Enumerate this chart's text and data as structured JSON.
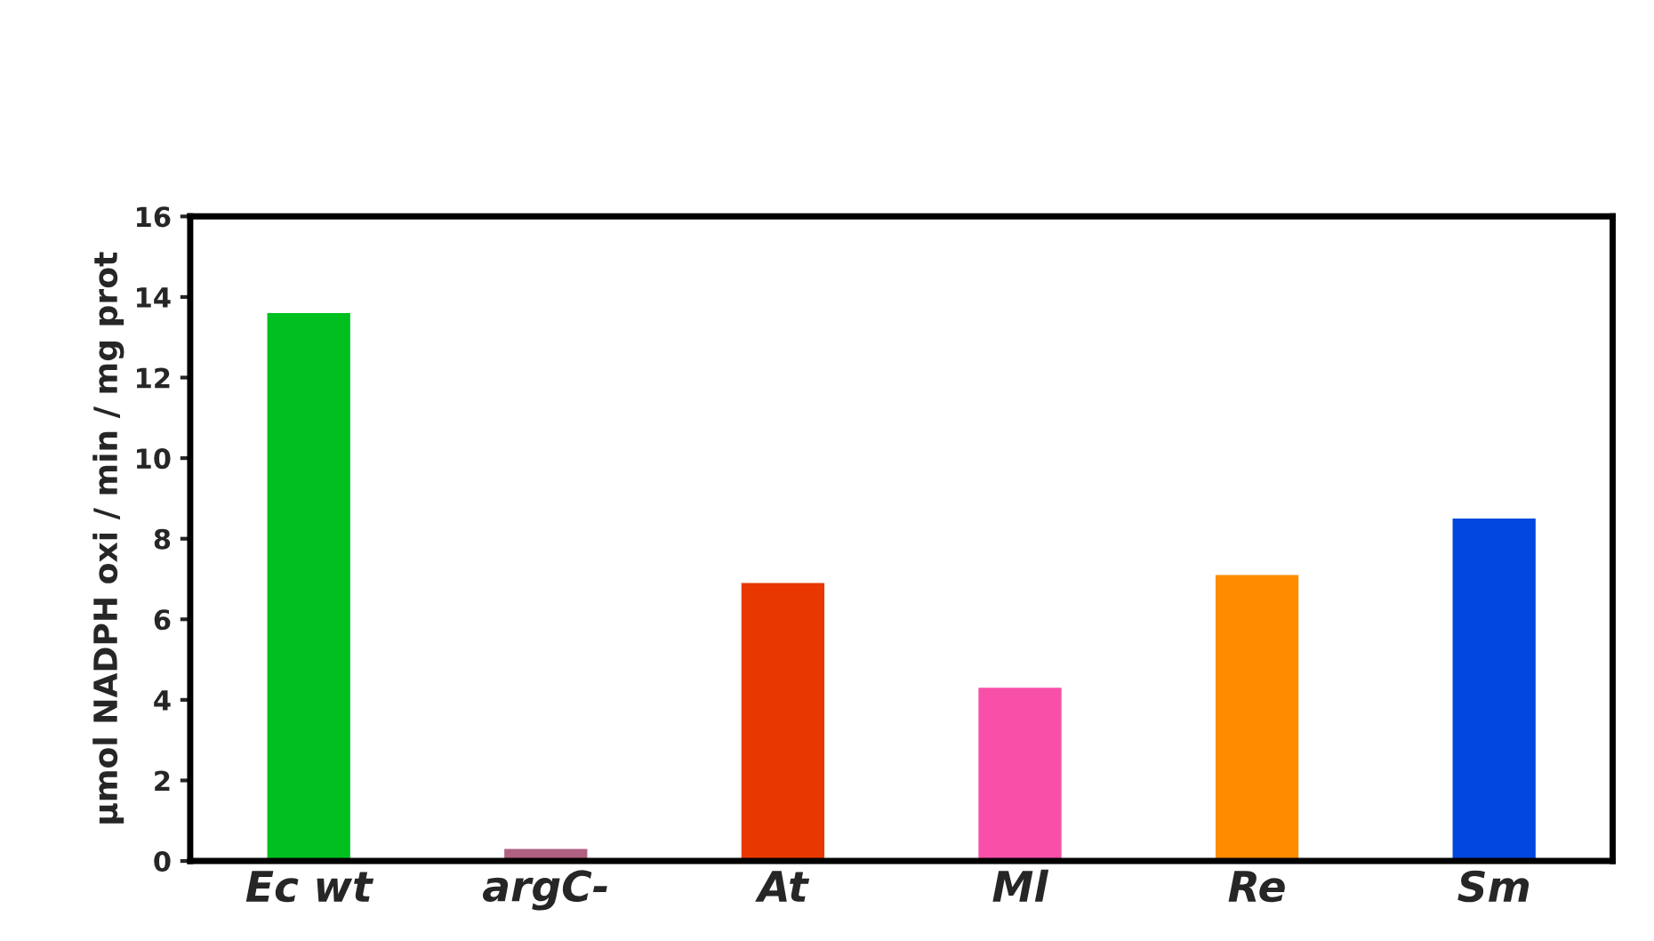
{
  "chart_data": {
    "type": "bar",
    "categories": [
      "Ec wt",
      "argC-",
      "At",
      "Ml",
      "Re",
      "Sm"
    ],
    "values": [
      13.6,
      0.3,
      6.9,
      4.3,
      7.1,
      8.5
    ],
    "colors": [
      "#00c020",
      "#b06080",
      "#e83800",
      "#f850a8",
      "#ff8c00",
      "#0048e0"
    ],
    "ylabel": "µmol NADPH oxi / min / mg prot",
    "ylim": [
      0,
      16
    ],
    "yticks": [
      0,
      2,
      4,
      6,
      8,
      10,
      12,
      14,
      16
    ],
    "grid": false,
    "legend": false
  }
}
